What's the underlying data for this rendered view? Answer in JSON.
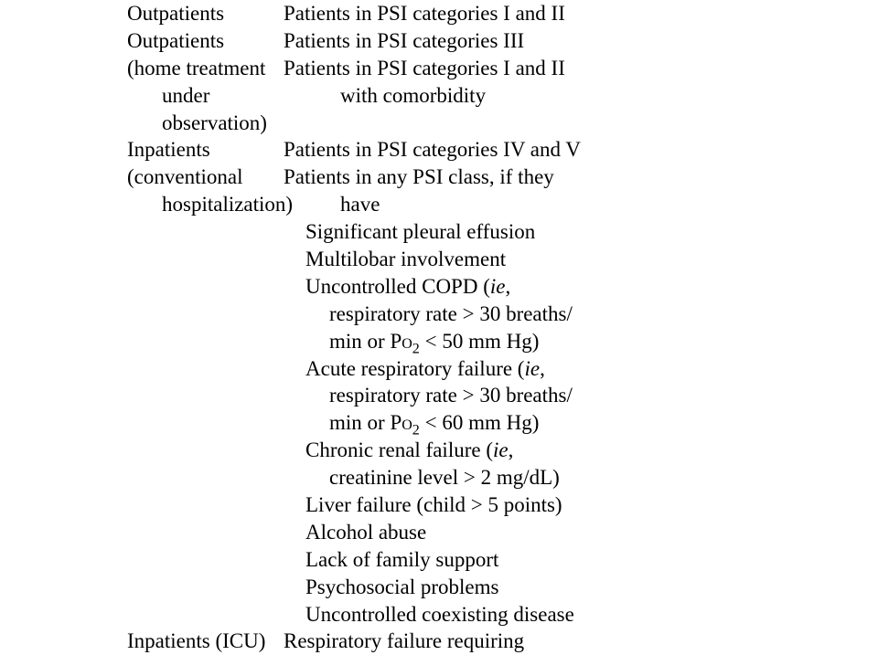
{
  "rows": [
    {
      "left": [
        "Outpatients"
      ],
      "right": [
        {
          "text": "Patients in PSI categories I and II",
          "indent": 0
        }
      ]
    },
    {
      "left": [
        "Outpatients (home treatment",
        "under observation)"
      ],
      "right": [
        {
          "text": "Patients in PSI categories III",
          "indent": 0
        },
        {
          "text": "Patients in PSI categories I and II",
          "indent": 0
        },
        {
          "text": "with comorbidity",
          "indent": 2
        }
      ]
    },
    {
      "left": [
        "Inpatients (conventional",
        "hospitalization)"
      ],
      "right": [
        {
          "text": "Patients in PSI categories IV and V",
          "indent": 0
        },
        {
          "text": "Patients in any PSI class, if they",
          "indent": 0
        },
        {
          "text": "have",
          "indent": 2
        },
        {
          "text": "Significant pleural effusion",
          "indent": 1
        },
        {
          "text": "Multilobar involvement",
          "indent": 1
        },
        {
          "html": "Uncontrolled COPD (<em>ie</em>,",
          "indent": 1
        },
        {
          "text": "respiratory rate > 30 breaths/",
          "indent": 3
        },
        {
          "html": "min or P<span class='smallcaps'>o</span><sub>2</sub> < 50 mm Hg)",
          "indent": 3
        },
        {
          "html": "Acute respiratory failure (<em>ie</em>,",
          "indent": 1
        },
        {
          "text": "respiratory rate > 30 breaths/",
          "indent": 3
        },
        {
          "html": "min or P<span class='smallcaps'>o</span><sub>2</sub> < 60 mm Hg)",
          "indent": 3
        },
        {
          "html": "Chronic renal failure (<em>ie</em>,",
          "indent": 1
        },
        {
          "text": "creatinine level > 2 mg/dL)",
          "indent": 3
        },
        {
          "text": "Liver failure (child > 5 points)",
          "indent": 1
        },
        {
          "text": "Alcohol abuse",
          "indent": 1
        },
        {
          "text": "Lack of family support",
          "indent": 1
        },
        {
          "text": "Psychosocial problems",
          "indent": 1
        },
        {
          "text": "Uncontrolled coexisting disease",
          "indent": 1
        }
      ]
    },
    {
      "left": [
        "Inpatients (ICU)"
      ],
      "right": [
        {
          "text": "Respiratory failure requiring",
          "indent": 0
        }
      ]
    }
  ]
}
